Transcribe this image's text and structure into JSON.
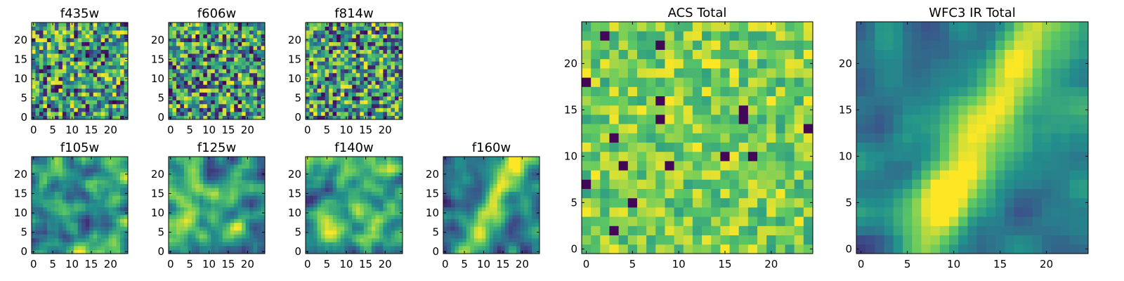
{
  "colormap": [
    "#440154",
    "#3b528b",
    "#21918c",
    "#5ec962",
    "#fde725"
  ],
  "chart_data": [
    {
      "type": "heatmap",
      "title": "f435w",
      "grid_size": 25,
      "x_ticks": [
        0,
        5,
        10,
        15,
        20
      ],
      "y_ticks": [
        0,
        5,
        10,
        15,
        20
      ],
      "xlim": [
        0,
        25
      ],
      "ylim": [
        0,
        25
      ],
      "grid": false,
      "pattern": "noise",
      "seed": 11
    },
    {
      "type": "heatmap",
      "title": "f606w",
      "grid_size": 25,
      "x_ticks": [
        0,
        5,
        10,
        15,
        20
      ],
      "y_ticks": [
        0,
        5,
        10,
        15,
        20
      ],
      "xlim": [
        0,
        25
      ],
      "ylim": [
        0,
        25
      ],
      "grid": false,
      "pattern": "noise",
      "seed": 23
    },
    {
      "type": "heatmap",
      "title": "f814w",
      "grid_size": 25,
      "x_ticks": [
        0,
        5,
        10,
        15,
        20
      ],
      "y_ticks": [
        0,
        5,
        10,
        15,
        20
      ],
      "xlim": [
        0,
        25
      ],
      "ylim": [
        0,
        25
      ],
      "grid": false,
      "pattern": "noise",
      "seed": 37
    },
    {
      "type": "heatmap",
      "title": "f105w",
      "grid_size": 25,
      "x_ticks": [
        0,
        5,
        10,
        15,
        20
      ],
      "y_ticks": [
        0,
        5,
        10,
        15,
        20
      ],
      "xlim": [
        0,
        25
      ],
      "ylim": [
        0,
        25
      ],
      "grid": false,
      "pattern": "smooth",
      "seed": 41
    },
    {
      "type": "heatmap",
      "title": "f125w",
      "grid_size": 25,
      "x_ticks": [
        0,
        5,
        10,
        15,
        20
      ],
      "y_ticks": [
        0,
        5,
        10,
        15,
        20
      ],
      "xlim": [
        0,
        25
      ],
      "ylim": [
        0,
        25
      ],
      "grid": false,
      "pattern": "smooth",
      "seed": 53
    },
    {
      "type": "heatmap",
      "title": "f140w",
      "grid_size": 25,
      "x_ticks": [
        0,
        5,
        10,
        15,
        20
      ],
      "y_ticks": [
        0,
        5,
        10,
        15,
        20
      ],
      "xlim": [
        0,
        25
      ],
      "ylim": [
        0,
        25
      ],
      "grid": false,
      "pattern": "smooth",
      "seed": 67
    },
    {
      "type": "heatmap",
      "title": "f160w",
      "grid_size": 25,
      "x_ticks": [
        0,
        5,
        10,
        15,
        20
      ],
      "y_ticks": [
        0,
        5,
        10,
        15,
        20
      ],
      "xlim": [
        0,
        25
      ],
      "ylim": [
        0,
        25
      ],
      "grid": false,
      "pattern": "streak",
      "seed": 79
    },
    {
      "type": "heatmap",
      "title": "ACS Total",
      "grid_size": 25,
      "x_ticks": [
        0,
        5,
        10,
        15,
        20
      ],
      "y_ticks": [
        0,
        5,
        10,
        15,
        20
      ],
      "xlim": [
        0,
        25
      ],
      "ylim": [
        0,
        25
      ],
      "grid": false,
      "pattern": "bright_noise",
      "seed": 89
    },
    {
      "type": "heatmap",
      "title": "WFC3 IR Total",
      "grid_size": 25,
      "x_ticks": [
        0,
        5,
        10,
        15,
        20
      ],
      "y_ticks": [
        0,
        5,
        10,
        15,
        20
      ],
      "xlim": [
        0,
        25
      ],
      "ylim": [
        0,
        25
      ],
      "grid": false,
      "pattern": "streak",
      "seed": 97
    }
  ]
}
